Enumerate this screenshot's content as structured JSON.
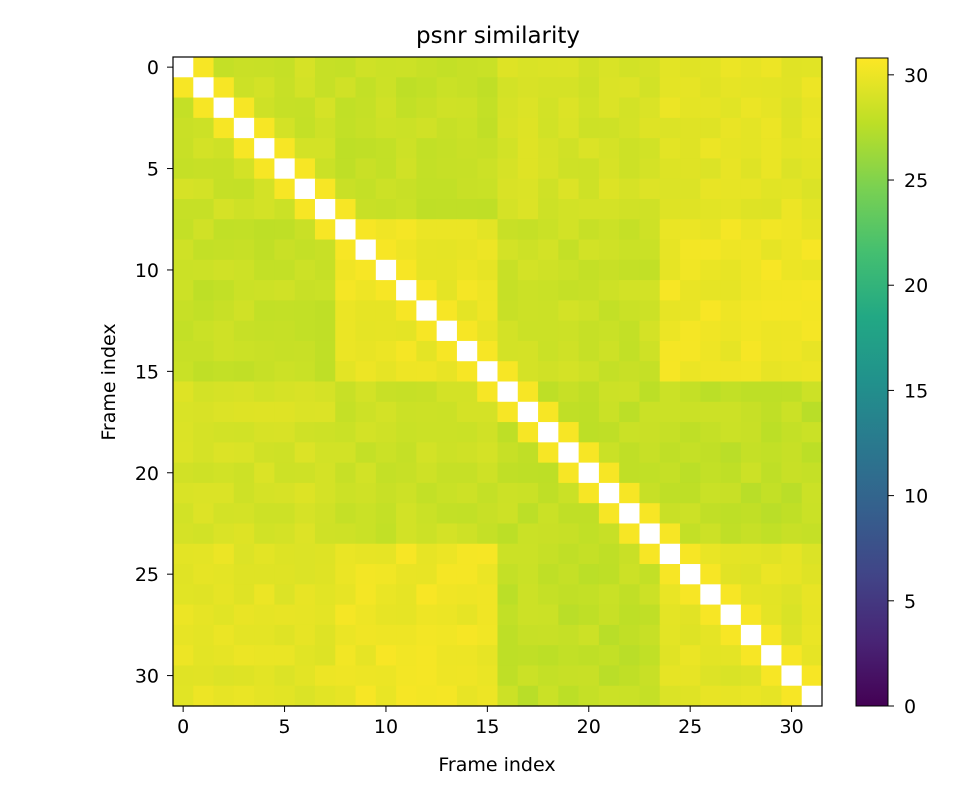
{
  "chart_data": {
    "type": "heatmap",
    "title": "psnr similarity",
    "xlabel": "Frame index",
    "ylabel": "Frame index",
    "x_ticks": [
      0,
      5,
      10,
      15,
      20,
      25,
      30
    ],
    "y_ticks": [
      0,
      5,
      10,
      15,
      20,
      25,
      30
    ],
    "n": 32,
    "colormap": "viridis",
    "colorbar": {
      "min": 0,
      "max": 30.8,
      "ticks": [
        0,
        5,
        10,
        15,
        20,
        25,
        30
      ]
    },
    "diagonal": "inf (rendered white)",
    "groups": [
      [
        0,
        7
      ],
      [
        8,
        15
      ],
      [
        16,
        23
      ],
      [
        24,
        31
      ]
    ],
    "group_values": [
      [
        28.5,
        28.2,
        28.9,
        29.6
      ],
      [
        28.2,
        30.0,
        28.4,
        30.1
      ],
      [
        28.9,
        28.4,
        28.1,
        28.0
      ],
      [
        29.6,
        30.1,
        28.0,
        29.5
      ]
    ],
    "adjacent_frame_value": 30.5
  }
}
